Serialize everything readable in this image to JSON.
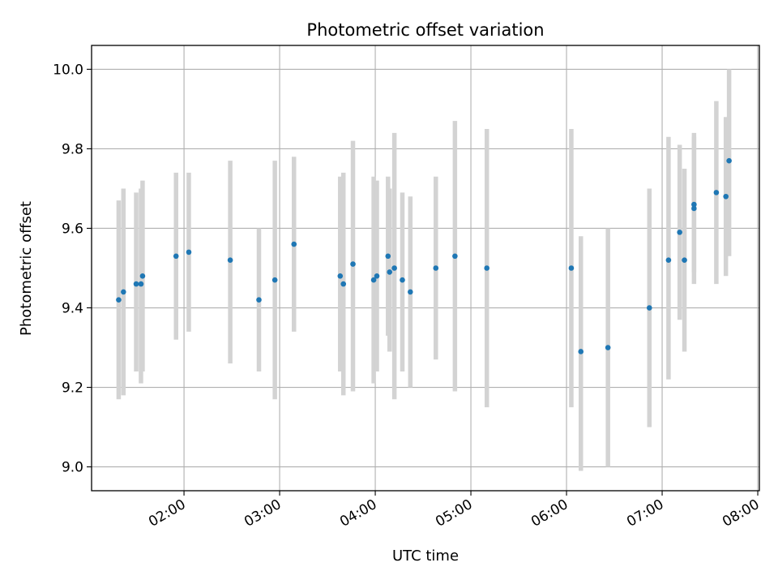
{
  "chart_data": {
    "type": "scatter",
    "title": "Photometric offset variation",
    "xlabel": "UTC time",
    "ylabel": "Photometric offset",
    "x_ticks": [
      "02:00",
      "03:00",
      "04:00",
      "05:00",
      "06:00",
      "07:00",
      "08:00"
    ],
    "y_ticks": [
      "9.0",
      "9.2",
      "9.4",
      "9.6",
      "9.8",
      "10.0"
    ],
    "xlim": [
      "01:02",
      "08:01"
    ],
    "ylim": [
      8.94,
      10.06
    ],
    "grid": true,
    "legend": "none",
    "colors": {
      "points": "#1f77b4",
      "error_bars": "#d3d3d3",
      "grid": "#b0b0b0"
    },
    "points": [
      {
        "x": "01:19",
        "y": 9.42,
        "yerr_low": 9.17,
        "yerr_high": 9.67
      },
      {
        "x": "01:22",
        "y": 9.44,
        "yerr_low": 9.18,
        "yerr_high": 9.7
      },
      {
        "x": "01:30",
        "y": 9.46,
        "yerr_low": 9.24,
        "yerr_high": 9.69
      },
      {
        "x": "01:33",
        "y": 9.46,
        "yerr_low": 9.21,
        "yerr_high": 9.7
      },
      {
        "x": "01:34",
        "y": 9.48,
        "yerr_low": 9.24,
        "yerr_high": 9.72
      },
      {
        "x": "01:55",
        "y": 9.53,
        "yerr_low": 9.32,
        "yerr_high": 9.74
      },
      {
        "x": "02:03",
        "y": 9.54,
        "yerr_low": 9.34,
        "yerr_high": 9.74
      },
      {
        "x": "02:29",
        "y": 9.52,
        "yerr_low": 9.26,
        "yerr_high": 9.77
      },
      {
        "x": "02:47",
        "y": 9.42,
        "yerr_low": 9.24,
        "yerr_high": 9.6
      },
      {
        "x": "02:57",
        "y": 9.47,
        "yerr_low": 9.17,
        "yerr_high": 9.77
      },
      {
        "x": "03:09",
        "y": 9.56,
        "yerr_low": 9.34,
        "yerr_high": 9.78
      },
      {
        "x": "03:38",
        "y": 9.48,
        "yerr_low": 9.24,
        "yerr_high": 9.73
      },
      {
        "x": "03:40",
        "y": 9.46,
        "yerr_low": 9.18,
        "yerr_high": 9.74
      },
      {
        "x": "03:46",
        "y": 9.51,
        "yerr_low": 9.19,
        "yerr_high": 9.82
      },
      {
        "x": "03:59",
        "y": 9.47,
        "yerr_low": 9.21,
        "yerr_high": 9.73
      },
      {
        "x": "04:01",
        "y": 9.48,
        "yerr_low": 9.24,
        "yerr_high": 9.72
      },
      {
        "x": "04:08",
        "y": 9.53,
        "yerr_low": 9.33,
        "yerr_high": 9.73
      },
      {
        "x": "04:09",
        "y": 9.49,
        "yerr_low": 9.29,
        "yerr_high": 9.7
      },
      {
        "x": "04:12",
        "y": 9.5,
        "yerr_low": 9.17,
        "yerr_high": 9.84
      },
      {
        "x": "04:17",
        "y": 9.47,
        "yerr_low": 9.24,
        "yerr_high": 9.69
      },
      {
        "x": "04:22",
        "y": 9.44,
        "yerr_low": 9.2,
        "yerr_high": 9.68
      },
      {
        "x": "04:38",
        "y": 9.5,
        "yerr_low": 9.27,
        "yerr_high": 9.73
      },
      {
        "x": "04:50",
        "y": 9.53,
        "yerr_low": 9.19,
        "yerr_high": 9.87
      },
      {
        "x": "05:10",
        "y": 9.5,
        "yerr_low": 9.15,
        "yerr_high": 9.85
      },
      {
        "x": "06:03",
        "y": 9.5,
        "yerr_low": 9.15,
        "yerr_high": 9.85
      },
      {
        "x": "06:09",
        "y": 9.29,
        "yerr_low": 8.99,
        "yerr_high": 9.58
      },
      {
        "x": "06:26",
        "y": 9.3,
        "yerr_low": 9.0,
        "yerr_high": 9.6
      },
      {
        "x": "06:52",
        "y": 9.4,
        "yerr_low": 9.1,
        "yerr_high": 9.7
      },
      {
        "x": "07:04",
        "y": 9.52,
        "yerr_low": 9.22,
        "yerr_high": 9.83
      },
      {
        "x": "07:11",
        "y": 9.59,
        "yerr_low": 9.37,
        "yerr_high": 9.81
      },
      {
        "x": "07:14",
        "y": 9.52,
        "yerr_low": 9.29,
        "yerr_high": 9.75
      },
      {
        "x": "07:20",
        "y": 9.66,
        "yerr_low": 9.49,
        "yerr_high": 9.84
      },
      {
        "x": "07:20",
        "y": 9.65,
        "yerr_low": 9.46,
        "yerr_high": 9.83
      },
      {
        "x": "07:34",
        "y": 9.69,
        "yerr_low": 9.46,
        "yerr_high": 9.92
      },
      {
        "x": "07:40",
        "y": 9.68,
        "yerr_low": 9.48,
        "yerr_high": 9.88
      },
      {
        "x": "07:42",
        "y": 9.77,
        "yerr_low": 9.53,
        "yerr_high": 10.0
      }
    ]
  }
}
